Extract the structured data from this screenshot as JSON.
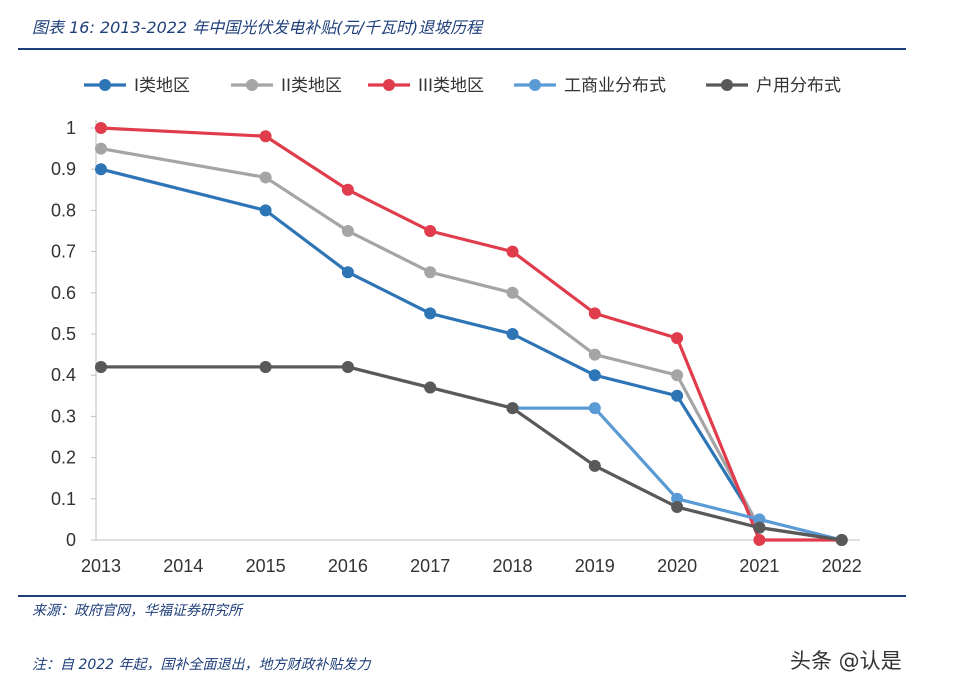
{
  "figure": {
    "title": "图表 16:  2013-2022 年中国光伏发电补贴(元/千瓦时)退坡历程",
    "source": "来源：政府官网，华福证券研究所",
    "note": "注：自 2022 年起，国补全面退出，地方财政补贴发力",
    "watermark": "头条 @认是"
  },
  "chart_data": {
    "type": "line",
    "title": "2013-2022 年中国光伏发电补贴(元/千瓦时)退坡历程",
    "xlabel": "",
    "ylabel": "",
    "categories": [
      "2013",
      "2014",
      "2015",
      "2016",
      "2017",
      "2018",
      "2019",
      "2020",
      "2021",
      "2022"
    ],
    "ylim": [
      0,
      1
    ],
    "yticks": [
      0,
      0.1,
      0.2,
      0.3,
      0.4,
      0.5,
      0.6,
      0.7,
      0.8,
      0.9,
      1
    ],
    "ytick_labels": [
      "0",
      "0.1",
      "0.2",
      "0.3",
      "0.4",
      "0.5",
      "0.6",
      "0.7",
      "0.8",
      "0.9",
      "1"
    ],
    "grid": false,
    "legend_position": "top",
    "series": [
      {
        "name": "I类地区",
        "color": "#2e75b6",
        "points": [
          [
            "2013",
            0.9
          ],
          [
            "2015",
            0.8
          ],
          [
            "2016",
            0.65
          ],
          [
            "2017",
            0.55
          ],
          [
            "2018",
            0.5
          ],
          [
            "2019",
            0.4
          ],
          [
            "2020",
            0.35
          ],
          [
            "2021",
            0.03
          ],
          [
            "2022",
            0
          ]
        ]
      },
      {
        "name": "II类地区",
        "color": "#a5a5a5",
        "points": [
          [
            "2013",
            0.95
          ],
          [
            "2015",
            0.88
          ],
          [
            "2016",
            0.75
          ],
          [
            "2017",
            0.65
          ],
          [
            "2018",
            0.6
          ],
          [
            "2019",
            0.45
          ],
          [
            "2020",
            0.4
          ],
          [
            "2021",
            0.03
          ],
          [
            "2022",
            0
          ]
        ]
      },
      {
        "name": "III类地区",
        "color": "#e03c4c",
        "points": [
          [
            "2013",
            1.0
          ],
          [
            "2015",
            0.98
          ],
          [
            "2016",
            0.85
          ],
          [
            "2017",
            0.75
          ],
          [
            "2018",
            0.7
          ],
          [
            "2019",
            0.55
          ],
          [
            "2020",
            0.49
          ],
          [
            "2021",
            0
          ],
          [
            "2022",
            0
          ]
        ]
      },
      {
        "name": "工商业分布式",
        "color": "#5b9bd5",
        "points": [
          [
            "2013",
            0.42
          ],
          [
            "2015",
            0.42
          ],
          [
            "2016",
            0.42
          ],
          [
            "2017",
            0.37
          ],
          [
            "2018",
            0.32
          ],
          [
            "2019",
            0.32
          ],
          [
            "2020",
            0.1
          ],
          [
            "2021",
            0.05
          ],
          [
            "2022",
            0
          ]
        ]
      },
      {
        "name": "户用分布式",
        "color": "#595959",
        "points": [
          [
            "2013",
            0.42
          ],
          [
            "2015",
            0.42
          ],
          [
            "2016",
            0.42
          ],
          [
            "2017",
            0.37
          ],
          [
            "2018",
            0.32
          ],
          [
            "2019",
            0.18
          ],
          [
            "2020",
            0.08
          ],
          [
            "2021",
            0.03
          ],
          [
            "2022",
            0
          ]
        ]
      }
    ]
  }
}
